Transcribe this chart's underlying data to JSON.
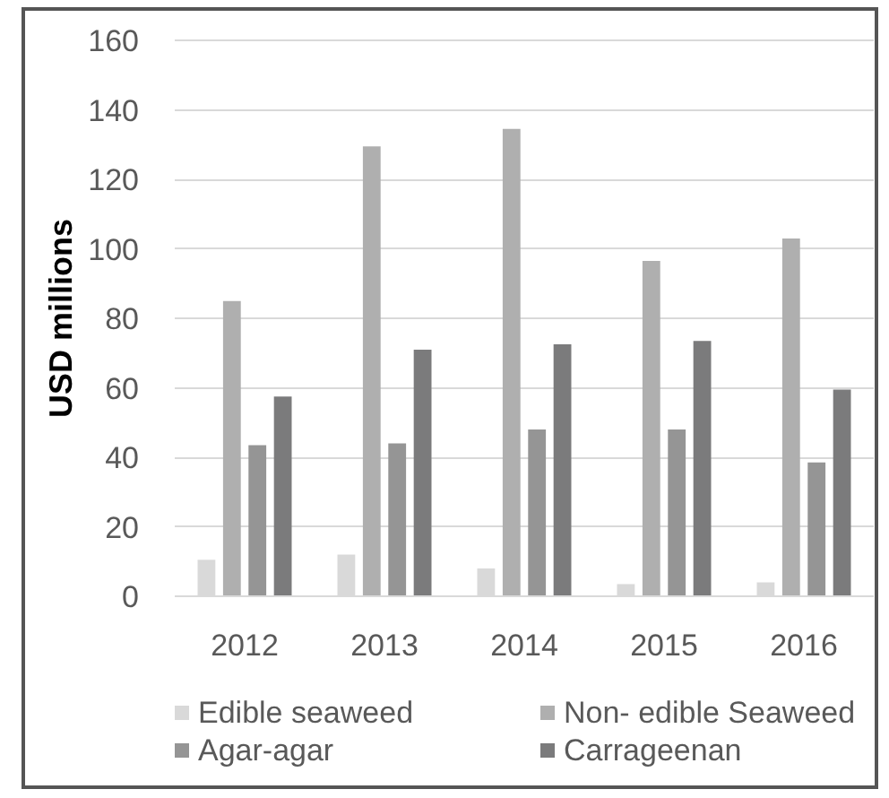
{
  "chart_data": {
    "type": "bar",
    "ylabel": "USD millions",
    "categories": [
      "2012",
      "2013",
      "2014",
      "2015",
      "2016"
    ],
    "series": [
      {
        "name": "Edible seaweed",
        "color": "#d9d9d9",
        "values": [
          10.5,
          12,
          8,
          3.5,
          4
        ]
      },
      {
        "name": "Non- edible Seaweed",
        "color": "#afafaf",
        "values": [
          85,
          129.5,
          134.5,
          96.5,
          103
        ]
      },
      {
        "name": "Agar-agar",
        "color": "#959595",
        "values": [
          43.5,
          44,
          48,
          48,
          38.5
        ]
      },
      {
        "name": "Carrageenan",
        "color": "#7b7b7c",
        "values": [
          57.5,
          71,
          72.5,
          73.5,
          59.5
        ]
      }
    ],
    "ylim": [
      0,
      160
    ],
    "yticks": [
      0,
      20,
      40,
      60,
      80,
      100,
      120,
      140,
      160
    ],
    "grid": "y",
    "legend": "bottom"
  }
}
